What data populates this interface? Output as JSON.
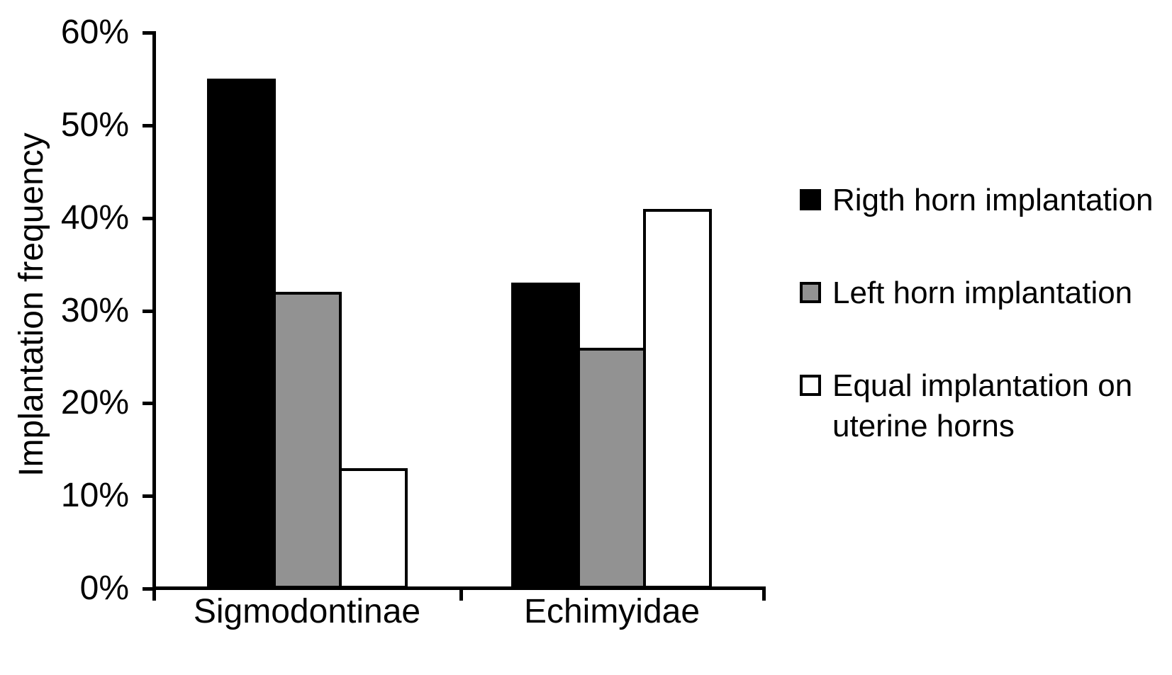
{
  "chart_data": {
    "type": "bar",
    "title": "",
    "xlabel": "",
    "ylabel": "Implantation frequency",
    "categories": [
      "Sigmodontinae",
      "Echimyidae"
    ],
    "series": [
      {
        "name": "Rigth horn implantation",
        "color": "#000000",
        "values": [
          55,
          33
        ]
      },
      {
        "name": "Left horn implantation",
        "color": "#929292",
        "values": [
          32,
          26
        ]
      },
      {
        "name": "Equal implantation on uterine horns",
        "color": "#ffffff",
        "values": [
          13,
          41
        ]
      }
    ],
    "ylim": [
      0,
      60
    ],
    "ytick_step": 10,
    "ytick_labels": [
      "0%",
      "10%",
      "20%",
      "30%",
      "40%",
      "50%",
      "60%"
    ],
    "grid": false,
    "legend_position": "right"
  },
  "legend": {
    "items": [
      {
        "line1": "Rigth horn implantation"
      },
      {
        "line1": "Left horn implantation"
      },
      {
        "line1": "Equal implantation on",
        "line2": "uterine horns"
      }
    ]
  }
}
